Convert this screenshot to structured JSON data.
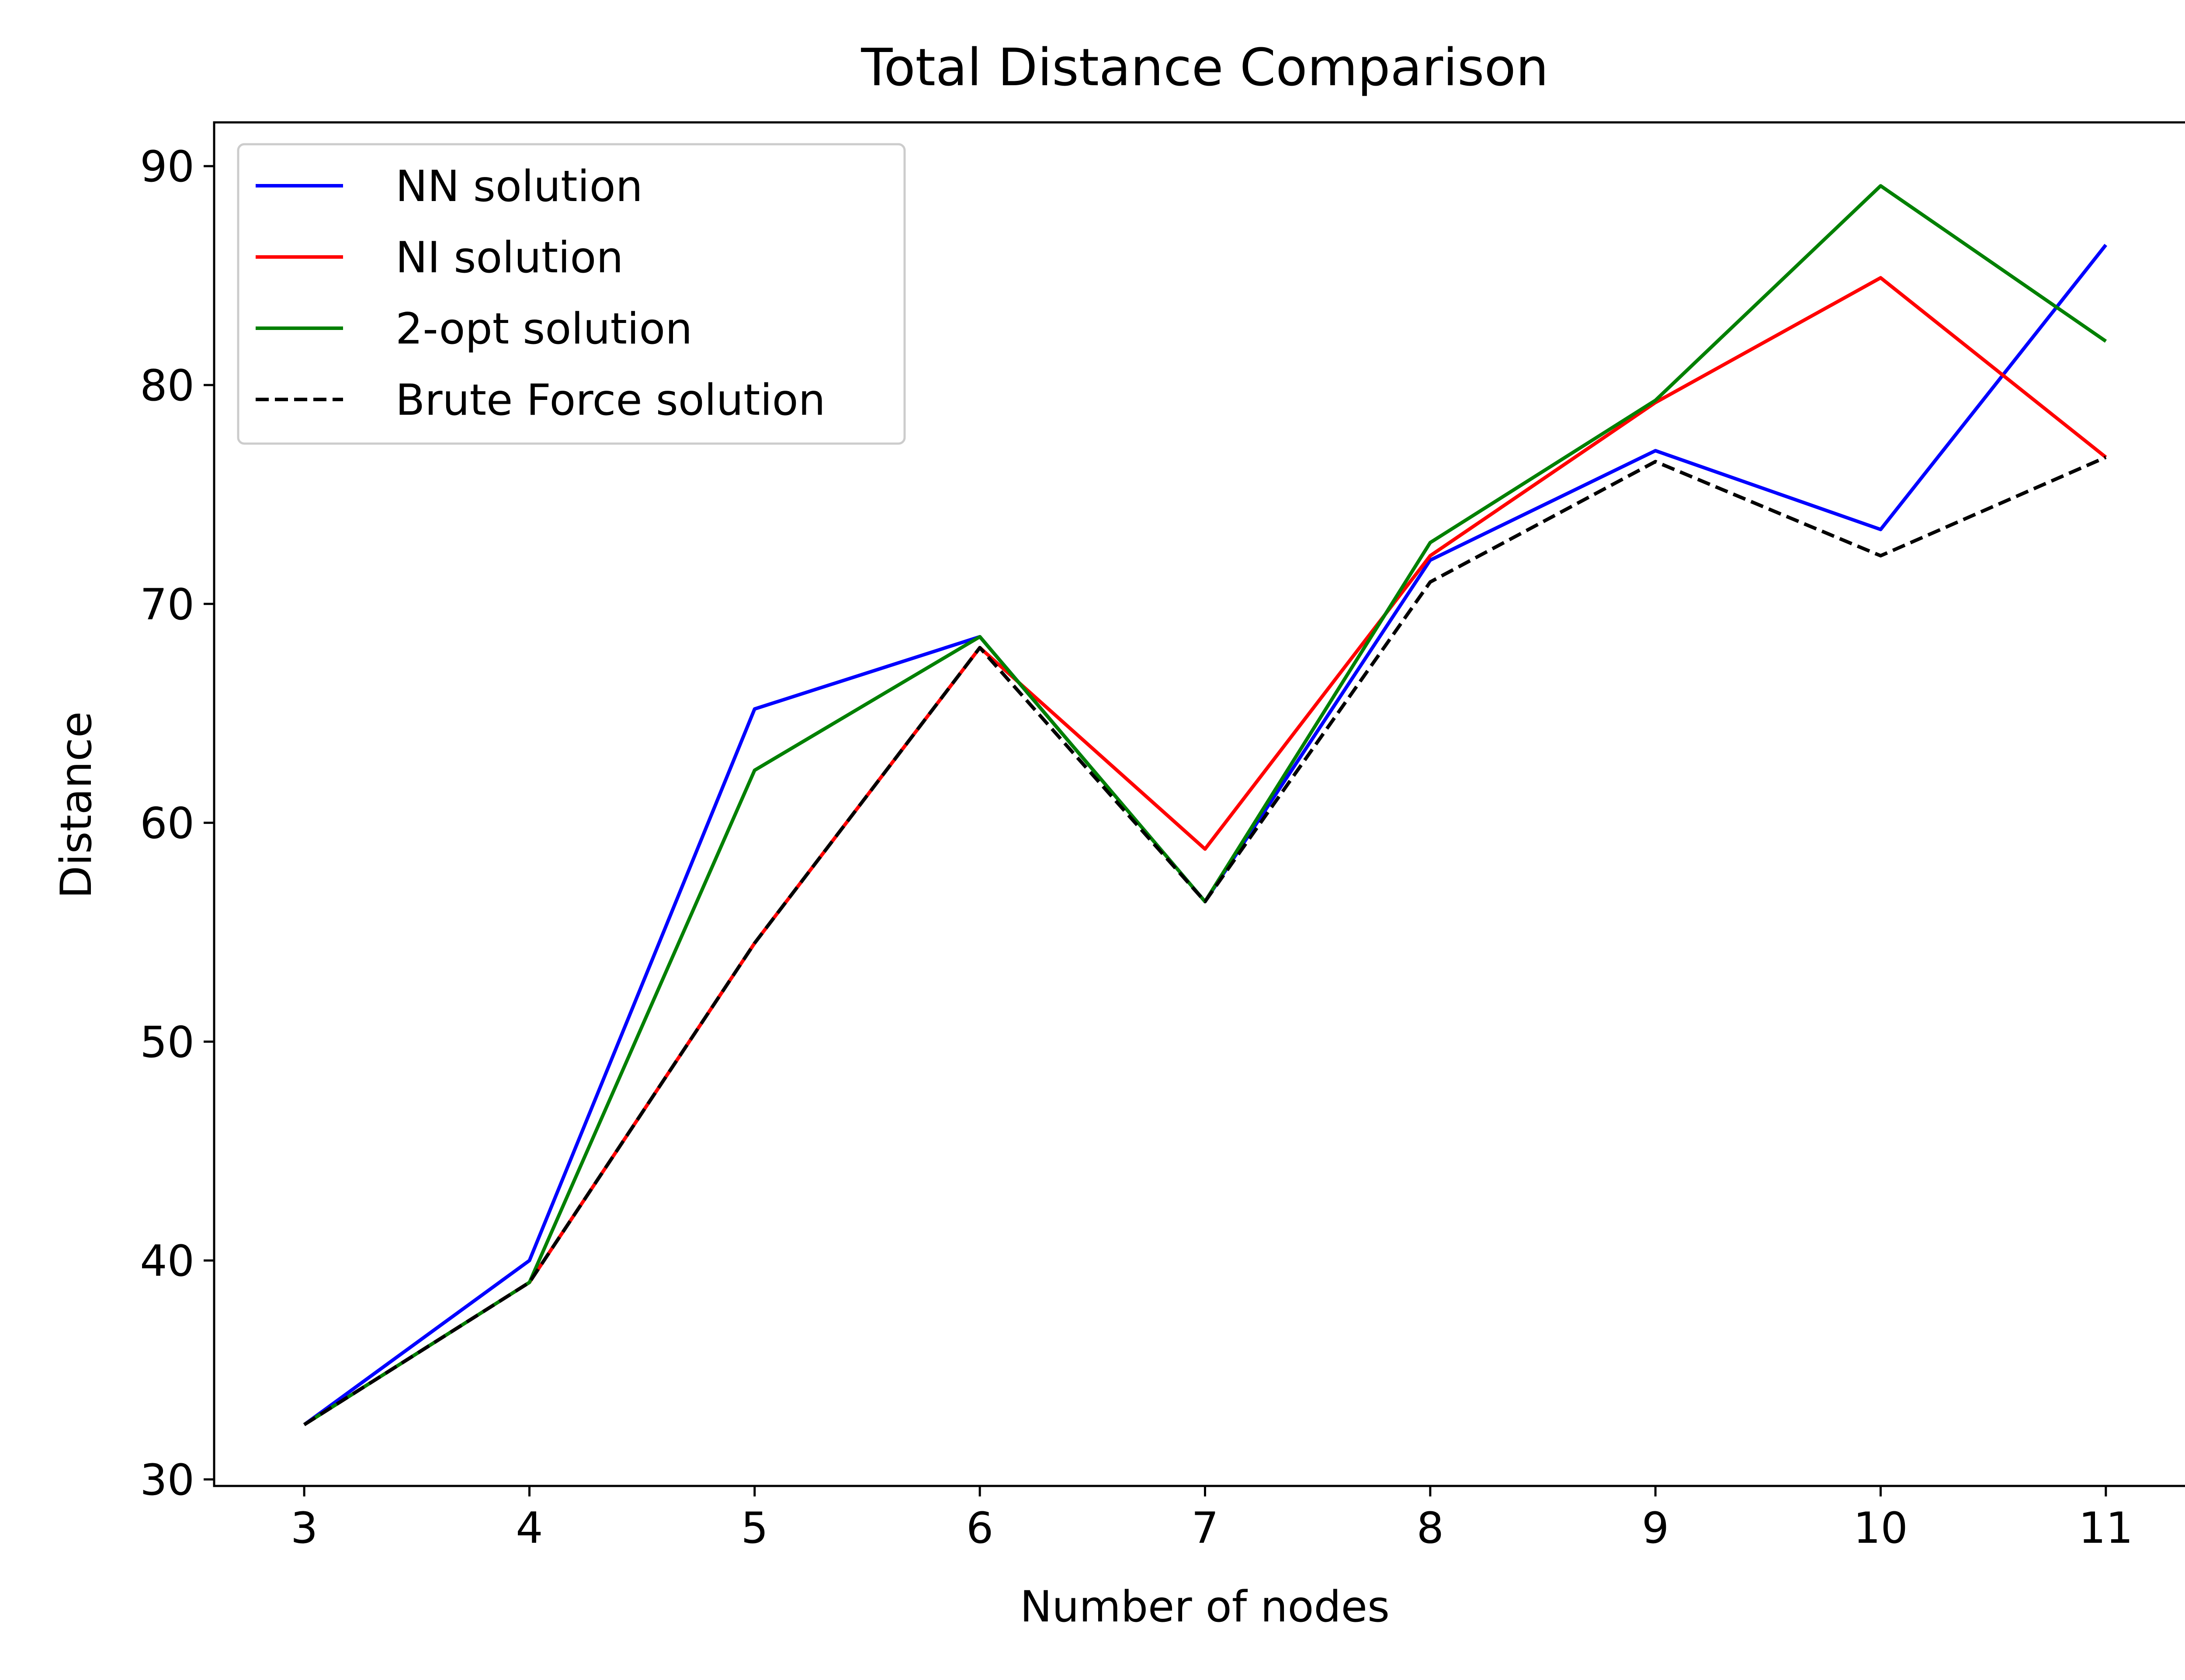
{
  "chart_data": {
    "type": "line",
    "title": "Total Distance Comparison",
    "xlabel": "Number of nodes",
    "ylabel": "Distance",
    "x": [
      3,
      4,
      5,
      6,
      7,
      8,
      9,
      10,
      11
    ],
    "xlim": [
      2.6,
      11.4
    ],
    "ylim": [
      29.7,
      92.0
    ],
    "xticks": [
      "3",
      "4",
      "5",
      "6",
      "7",
      "8",
      "9",
      "10",
      "11"
    ],
    "yticks": [
      "30",
      "40",
      "50",
      "60",
      "70",
      "80",
      "90"
    ],
    "grid": false,
    "legend_position": "upper-left",
    "series": [
      {
        "name": "NN solution",
        "color": "#0000ff",
        "dash": "solid",
        "values": [
          32.5,
          40.0,
          65.2,
          68.5,
          56.4,
          72.0,
          77.0,
          73.4,
          86.4
        ]
      },
      {
        "name": "NI solution",
        "color": "#ff0000",
        "dash": "solid",
        "values": [
          32.5,
          39.0,
          54.5,
          68.0,
          58.8,
          72.2,
          79.2,
          84.9,
          76.7
        ]
      },
      {
        "name": "2-opt solution",
        "color": "#008000",
        "dash": "solid",
        "values": [
          32.5,
          39.0,
          62.4,
          68.5,
          56.4,
          72.8,
          79.3,
          89.1,
          82.0
        ]
      },
      {
        "name": "Brute Force solution",
        "color": "#000000",
        "dash": "dashed",
        "values": [
          32.5,
          39.0,
          54.5,
          68.0,
          56.4,
          71.0,
          76.5,
          72.2,
          76.7
        ]
      }
    ]
  }
}
